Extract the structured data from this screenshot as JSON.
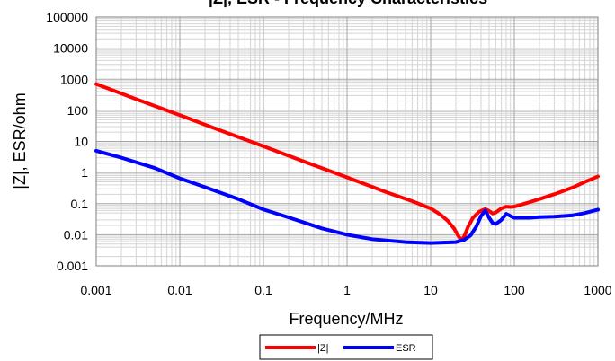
{
  "chart_data": {
    "type": "line",
    "title": "|Z|, ESR - Frequency Characteristics",
    "xlabel": "Frequency/MHz",
    "ylabel": "|Z|, ESR/ohm",
    "xscale": "log",
    "yscale": "log",
    "xlim": [
      0.001,
      1000
    ],
    "ylim": [
      0.001,
      100000
    ],
    "x_ticks": [
      "0.001",
      "0.01",
      "0.1",
      "1",
      "10",
      "100",
      "1000"
    ],
    "y_ticks": [
      "0.001",
      "0.01",
      "0.1",
      "1",
      "10",
      "100",
      "1000",
      "10000",
      "100000"
    ],
    "grid": true,
    "legend_position": "bottom-center",
    "series": [
      {
        "name": "|Z|",
        "color": "#ff0000",
        "points": [
          [
            0.001,
            700
          ],
          [
            0.003,
            230
          ],
          [
            0.01,
            70
          ],
          [
            0.03,
            23
          ],
          [
            0.1,
            7
          ],
          [
            0.3,
            2.3
          ],
          [
            1,
            0.7
          ],
          [
            3,
            0.23
          ],
          [
            6,
            0.12
          ],
          [
            10,
            0.07
          ],
          [
            13,
            0.045
          ],
          [
            16,
            0.028
          ],
          [
            19,
            0.016
          ],
          [
            21.5,
            0.009
          ],
          [
            23,
            0.0068
          ],
          [
            25,
            0.0085
          ],
          [
            28,
            0.018
          ],
          [
            32,
            0.035
          ],
          [
            38,
            0.055
          ],
          [
            45,
            0.067
          ],
          [
            50,
            0.058
          ],
          [
            55,
            0.048
          ],
          [
            60,
            0.052
          ],
          [
            70,
            0.07
          ],
          [
            80,
            0.08
          ],
          [
            90,
            0.078
          ],
          [
            100,
            0.08
          ],
          [
            150,
            0.11
          ],
          [
            200,
            0.14
          ],
          [
            300,
            0.2
          ],
          [
            500,
            0.33
          ],
          [
            700,
            0.5
          ],
          [
            1000,
            0.75
          ]
        ]
      },
      {
        "name": "ESR",
        "color": "#0000ff",
        "points": [
          [
            0.001,
            5
          ],
          [
            0.002,
            3
          ],
          [
            0.005,
            1.4
          ],
          [
            0.01,
            0.65
          ],
          [
            0.02,
            0.34
          ],
          [
            0.05,
            0.14
          ],
          [
            0.1,
            0.065
          ],
          [
            0.2,
            0.036
          ],
          [
            0.5,
            0.016
          ],
          [
            1,
            0.01
          ],
          [
            2,
            0.0072
          ],
          [
            5,
            0.0058
          ],
          [
            10,
            0.0054
          ],
          [
            20,
            0.0058
          ],
          [
            25,
            0.0068
          ],
          [
            30,
            0.0095
          ],
          [
            35,
            0.018
          ],
          [
            40,
            0.04
          ],
          [
            45,
            0.06
          ],
          [
            50,
            0.035
          ],
          [
            55,
            0.024
          ],
          [
            60,
            0.022
          ],
          [
            70,
            0.03
          ],
          [
            80,
            0.047
          ],
          [
            90,
            0.04
          ],
          [
            100,
            0.035
          ],
          [
            150,
            0.035
          ],
          [
            200,
            0.037
          ],
          [
            300,
            0.038
          ],
          [
            500,
            0.042
          ],
          [
            700,
            0.05
          ],
          [
            1000,
            0.064
          ]
        ]
      }
    ]
  }
}
